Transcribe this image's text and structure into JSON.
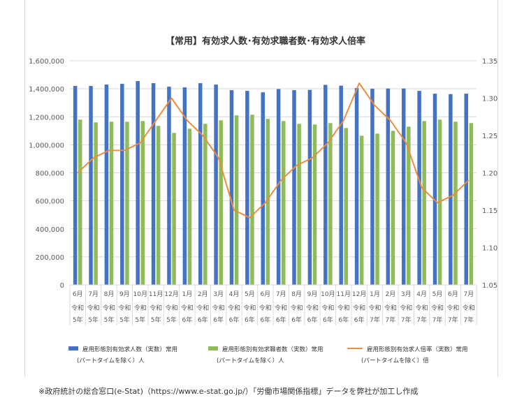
{
  "chart_data": {
    "type": "bar",
    "title": "【常用】有効求人数･有効求職者数･有効求人倍率",
    "categories": [
      [
        "6月",
        "令和",
        "5年"
      ],
      [
        "7月",
        "令和",
        "5年"
      ],
      [
        "8月",
        "令和",
        "5年"
      ],
      [
        "9月",
        "令和",
        "5年"
      ],
      [
        "10月",
        "令和",
        "5年"
      ],
      [
        "11月",
        "令和",
        "5年"
      ],
      [
        "12月",
        "令和",
        "5年"
      ],
      [
        "1月",
        "令和",
        "6年"
      ],
      [
        "2月",
        "令和",
        "6年"
      ],
      [
        "3月",
        "令和",
        "6年"
      ],
      [
        "4月",
        "令和",
        "6年"
      ],
      [
        "5月",
        "令和",
        "6年"
      ],
      [
        "6月",
        "令和",
        "6年"
      ],
      [
        "7月",
        "令和",
        "6年"
      ],
      [
        "8月",
        "令和",
        "6年"
      ],
      [
        "9月",
        "令和",
        "6年"
      ],
      [
        "10月",
        "令和",
        "6年"
      ],
      [
        "11月",
        "令和",
        "6年"
      ],
      [
        "12月",
        "令和",
        "6年"
      ],
      [
        "1月",
        "令和",
        "7年"
      ],
      [
        "2月",
        "令和",
        "7年"
      ],
      [
        "3月",
        "令和",
        "7年"
      ],
      [
        "4月",
        "令和",
        "7年"
      ],
      [
        "5月",
        "令和",
        "7年"
      ],
      [
        "6月",
        "令和",
        "7年"
      ],
      [
        "7月",
        "令和",
        "7年"
      ]
    ],
    "y_left": {
      "ylim": [
        0,
        1600000
      ],
      "ticks": [
        "0",
        "200,000",
        "400,000",
        "600,000",
        "800,000",
        "1,000,000",
        "1,200,000",
        "1,400,000",
        "1,600,000"
      ]
    },
    "y_right": {
      "ylim": [
        1.05,
        1.35
      ],
      "ticks": [
        "1.05",
        "1.10",
        "1.15",
        "1.20",
        "1.25",
        "1.30",
        "1.35"
      ]
    },
    "series": [
      {
        "name": "雇用形態別有効求人数（実数）常用（パートタイムを除く）人",
        "legend_line1": "雇用形態別有効求人数（実数）常用",
        "legend_line2": "(パートタイムを除く）人",
        "type": "bar",
        "axis": "left",
        "color": "#4472c4",
        "values": [
          1420000,
          1420000,
          1430000,
          1435000,
          1455000,
          1440000,
          1415000,
          1410000,
          1440000,
          1430000,
          1390000,
          1385000,
          1375000,
          1398000,
          1390000,
          1392000,
          1428000,
          1422000,
          1405000,
          1400000,
          1402000,
          1402000,
          1385000,
          1365000,
          1362000,
          1365000
        ]
      },
      {
        "name": "雇用形態別有効求職者数（実数）常用（パートタイムを除く）人",
        "legend_line1": "雇用形態別有効求職者数（実数）常用",
        "legend_line2": "(パートタイムを除く）人",
        "type": "bar",
        "axis": "left",
        "color": "#8fbc5a",
        "values": [
          1180000,
          1160000,
          1165000,
          1165000,
          1170000,
          1135000,
          1085000,
          1115000,
          1150000,
          1175000,
          1210000,
          1215000,
          1185000,
          1170000,
          1150000,
          1145000,
          1155000,
          1120000,
          1065000,
          1080000,
          1100000,
          1130000,
          1170000,
          1180000,
          1165000,
          1155000
        ]
      },
      {
        "name": "雇用形態別有効求人倍率（実数）常用（パートタイムを除く）倍",
        "legend_line1": "雇用形態別有効求人倍率（実数）常用",
        "legend_line2": "(パートタイムを除く）倍",
        "type": "line",
        "axis": "right",
        "color": "#ed8c3e",
        "values": [
          1.2,
          1.22,
          1.23,
          1.23,
          1.24,
          1.27,
          1.3,
          1.27,
          1.25,
          1.22,
          1.15,
          1.14,
          1.16,
          1.19,
          1.21,
          1.22,
          1.24,
          1.27,
          1.32,
          1.29,
          1.27,
          1.24,
          1.18,
          1.16,
          1.17,
          1.19
        ]
      }
    ],
    "grid": true,
    "legend_position": "bottom"
  },
  "footnote": "※政府統計の総合窓口(e-Stat)（https://www.e-stat.go.jp/）「労働市場関係指標」データを弊社が加工し作成"
}
